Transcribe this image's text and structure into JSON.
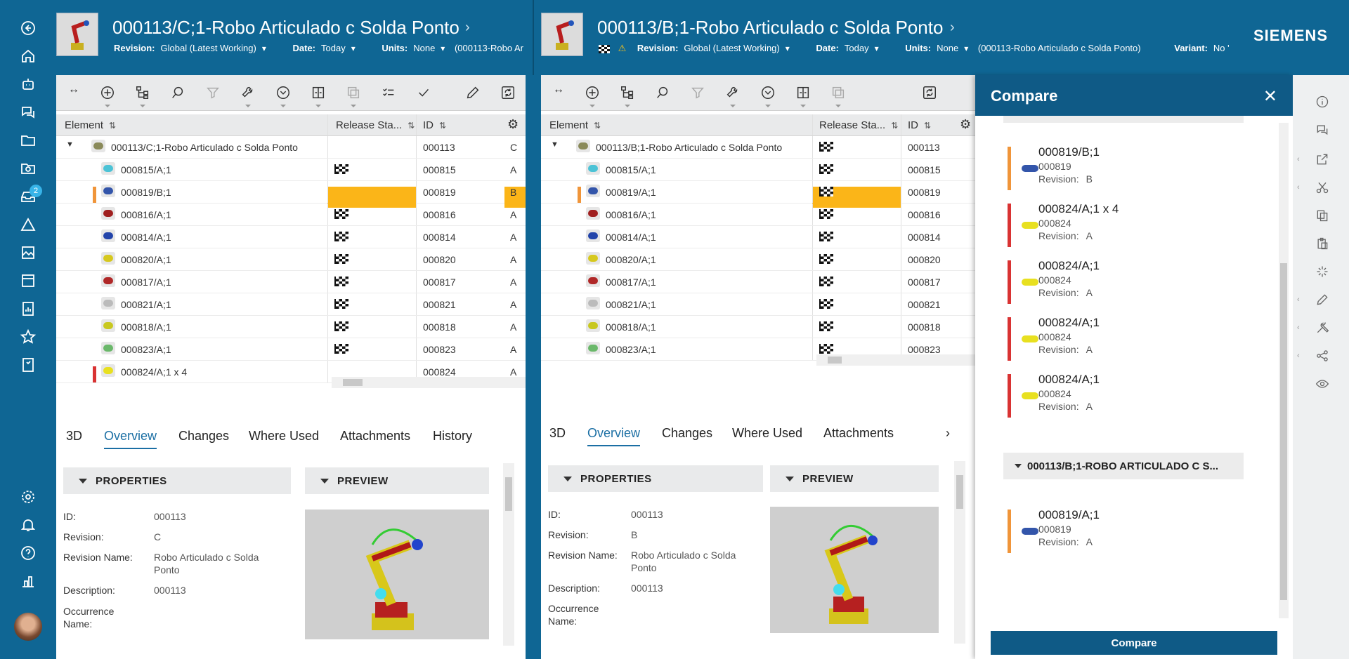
{
  "left_nav": {
    "inbox_badge": "2"
  },
  "left_header": {
    "title": "000113/C;1-Robo Articulado c Solda Ponto",
    "revision_label": "Revision:",
    "revision_value": "Global (Latest Working)",
    "date_label": "Date:",
    "date_value": "Today",
    "units_label": "Units:",
    "units_value": "None",
    "context_truncated": "(000113-Robo Ar"
  },
  "right_header": {
    "title": "000113/B;1-Robo Articulado c Solda Ponto",
    "revision_label": "Revision:",
    "revision_value": "Global (Latest Working)",
    "date_label": "Date:",
    "date_value": "Today",
    "units_label": "Units:",
    "units_value": "None",
    "context": "(000113-Robo Articulado c Solda Ponto)",
    "variant_label": "Variant:",
    "variant_value": "No '"
  },
  "brand": "SIEMENS",
  "table_headers": {
    "element": "Element",
    "release_left": "Release Sta...",
    "release_right": "Release Sta...",
    "id": "ID"
  },
  "left_rows": [
    {
      "name": "000113/C;1-Robo Articulado c Solda Ponto",
      "id": "000113",
      "rev": "C",
      "flag": false,
      "marker": "",
      "root": true,
      "icon": "#8a8a5a"
    },
    {
      "name": "000815/A;1",
      "id": "000815",
      "rev": "A",
      "flag": true,
      "marker": "",
      "icon": "#4cc3d6"
    },
    {
      "name": "000819/B;1",
      "id": "000819",
      "rev": "B",
      "flag": false,
      "marker": "#f0953a",
      "hl": true,
      "icon": "#3355aa"
    },
    {
      "name": "000816/A;1",
      "id": "000816",
      "rev": "A",
      "flag": true,
      "marker": "",
      "icon": "#a02020"
    },
    {
      "name": "000814/A;1",
      "id": "000814",
      "rev": "A",
      "flag": true,
      "marker": "",
      "icon": "#2244aa"
    },
    {
      "name": "000820/A;1",
      "id": "000820",
      "rev": "A",
      "flag": true,
      "marker": "",
      "icon": "#d6c81e"
    },
    {
      "name": "000817/A;1",
      "id": "000817",
      "rev": "A",
      "flag": true,
      "marker": "",
      "icon": "#b02828"
    },
    {
      "name": "000821/A;1",
      "id": "000821",
      "rev": "A",
      "flag": true,
      "marker": "",
      "icon": "#bbbbbb"
    },
    {
      "name": "000818/A;1",
      "id": "000818",
      "rev": "A",
      "flag": true,
      "marker": "",
      "icon": "#c8c820"
    },
    {
      "name": "000823/A;1",
      "id": "000823",
      "rev": "A",
      "flag": true,
      "marker": "",
      "icon": "#6ab86a"
    },
    {
      "name": "000824/A;1 x 4",
      "id": "000824",
      "rev": "A",
      "flag": false,
      "marker": "#d93333",
      "icon": "#e8e020"
    }
  ],
  "right_rows": [
    {
      "name": "000113/B;1-Robo Articulado c Solda Ponto",
      "id": "000113",
      "flag": true,
      "marker": "",
      "root": true,
      "icon": "#8a8a5a"
    },
    {
      "name": "000815/A;1",
      "id": "000815",
      "flag": true,
      "marker": "",
      "icon": "#4cc3d6"
    },
    {
      "name": "000819/A;1",
      "id": "000819",
      "flag": true,
      "marker": "#f0953a",
      "hl": true,
      "icon": "#3355aa"
    },
    {
      "name": "000816/A;1",
      "id": "000816",
      "flag": true,
      "marker": "",
      "icon": "#a02020"
    },
    {
      "name": "000814/A;1",
      "id": "000814",
      "flag": true,
      "marker": "",
      "icon": "#2244aa"
    },
    {
      "name": "000820/A;1",
      "id": "000820",
      "flag": true,
      "marker": "",
      "icon": "#d6c81e"
    },
    {
      "name": "000817/A;1",
      "id": "000817",
      "flag": true,
      "marker": "",
      "icon": "#b02828"
    },
    {
      "name": "000821/A;1",
      "id": "000821",
      "flag": true,
      "marker": "",
      "icon": "#bbbbbb"
    },
    {
      "name": "000818/A;1",
      "id": "000818",
      "flag": true,
      "marker": "",
      "icon": "#c8c820"
    },
    {
      "name": "000823/A;1",
      "id": "000823",
      "flag": true,
      "marker": "",
      "icon": "#6ab86a"
    }
  ],
  "left_tabs": [
    "3D",
    "Overview",
    "Changes",
    "Where Used",
    "Attachments",
    "History"
  ],
  "right_tabs": [
    "3D",
    "Overview",
    "Changes",
    "Where Used",
    "Attachments"
  ],
  "sections": {
    "properties": "PROPERTIES",
    "preview": "PREVIEW"
  },
  "left_props": {
    "id_label": "ID:",
    "id": "000113",
    "rev_label": "Revision:",
    "rev": "C",
    "revname_label": "Revision Name:",
    "revname": "Robo Articulado c Solda Ponto",
    "desc_label": "Description:",
    "desc": "000113",
    "occ_label": "Occurrence Name:"
  },
  "right_props": {
    "id_label": "ID:",
    "id": "000113",
    "rev_label": "Revision:",
    "rev": "B",
    "revname_label": "Revision Name:",
    "revname": "Robo Articulado c Solda Ponto",
    "desc_label": "Description:",
    "desc": "000113",
    "occ_label": "Occurrence Name:"
  },
  "compare": {
    "title": "Compare",
    "cards": [
      {
        "name": "000819/B;1",
        "id": "000819",
        "revision": "B",
        "bar": "#f0953a",
        "icon": "#3355aa"
      },
      {
        "name": "000824/A;1 x 4",
        "id": "000824",
        "revision": "A",
        "bar": "#d93333",
        "icon": "#e8e020"
      },
      {
        "name": "000824/A;1",
        "id": "000824",
        "revision": "A",
        "bar": "#d93333",
        "icon": "#e8e020"
      },
      {
        "name": "000824/A;1",
        "id": "000824",
        "revision": "A",
        "bar": "#d93333",
        "icon": "#e8e020"
      },
      {
        "name": "000824/A;1",
        "id": "000824",
        "revision": "A",
        "bar": "#d93333",
        "icon": "#e8e020"
      }
    ],
    "revision_label": "Revision:",
    "group_title": "000113/B;1-ROBO ARTICULADO C S...",
    "group_cards": [
      {
        "name": "000819/A;1",
        "id": "000819",
        "revision": "A",
        "bar": "#f0953a",
        "icon": "#3355aa"
      }
    ],
    "button": "Compare"
  }
}
